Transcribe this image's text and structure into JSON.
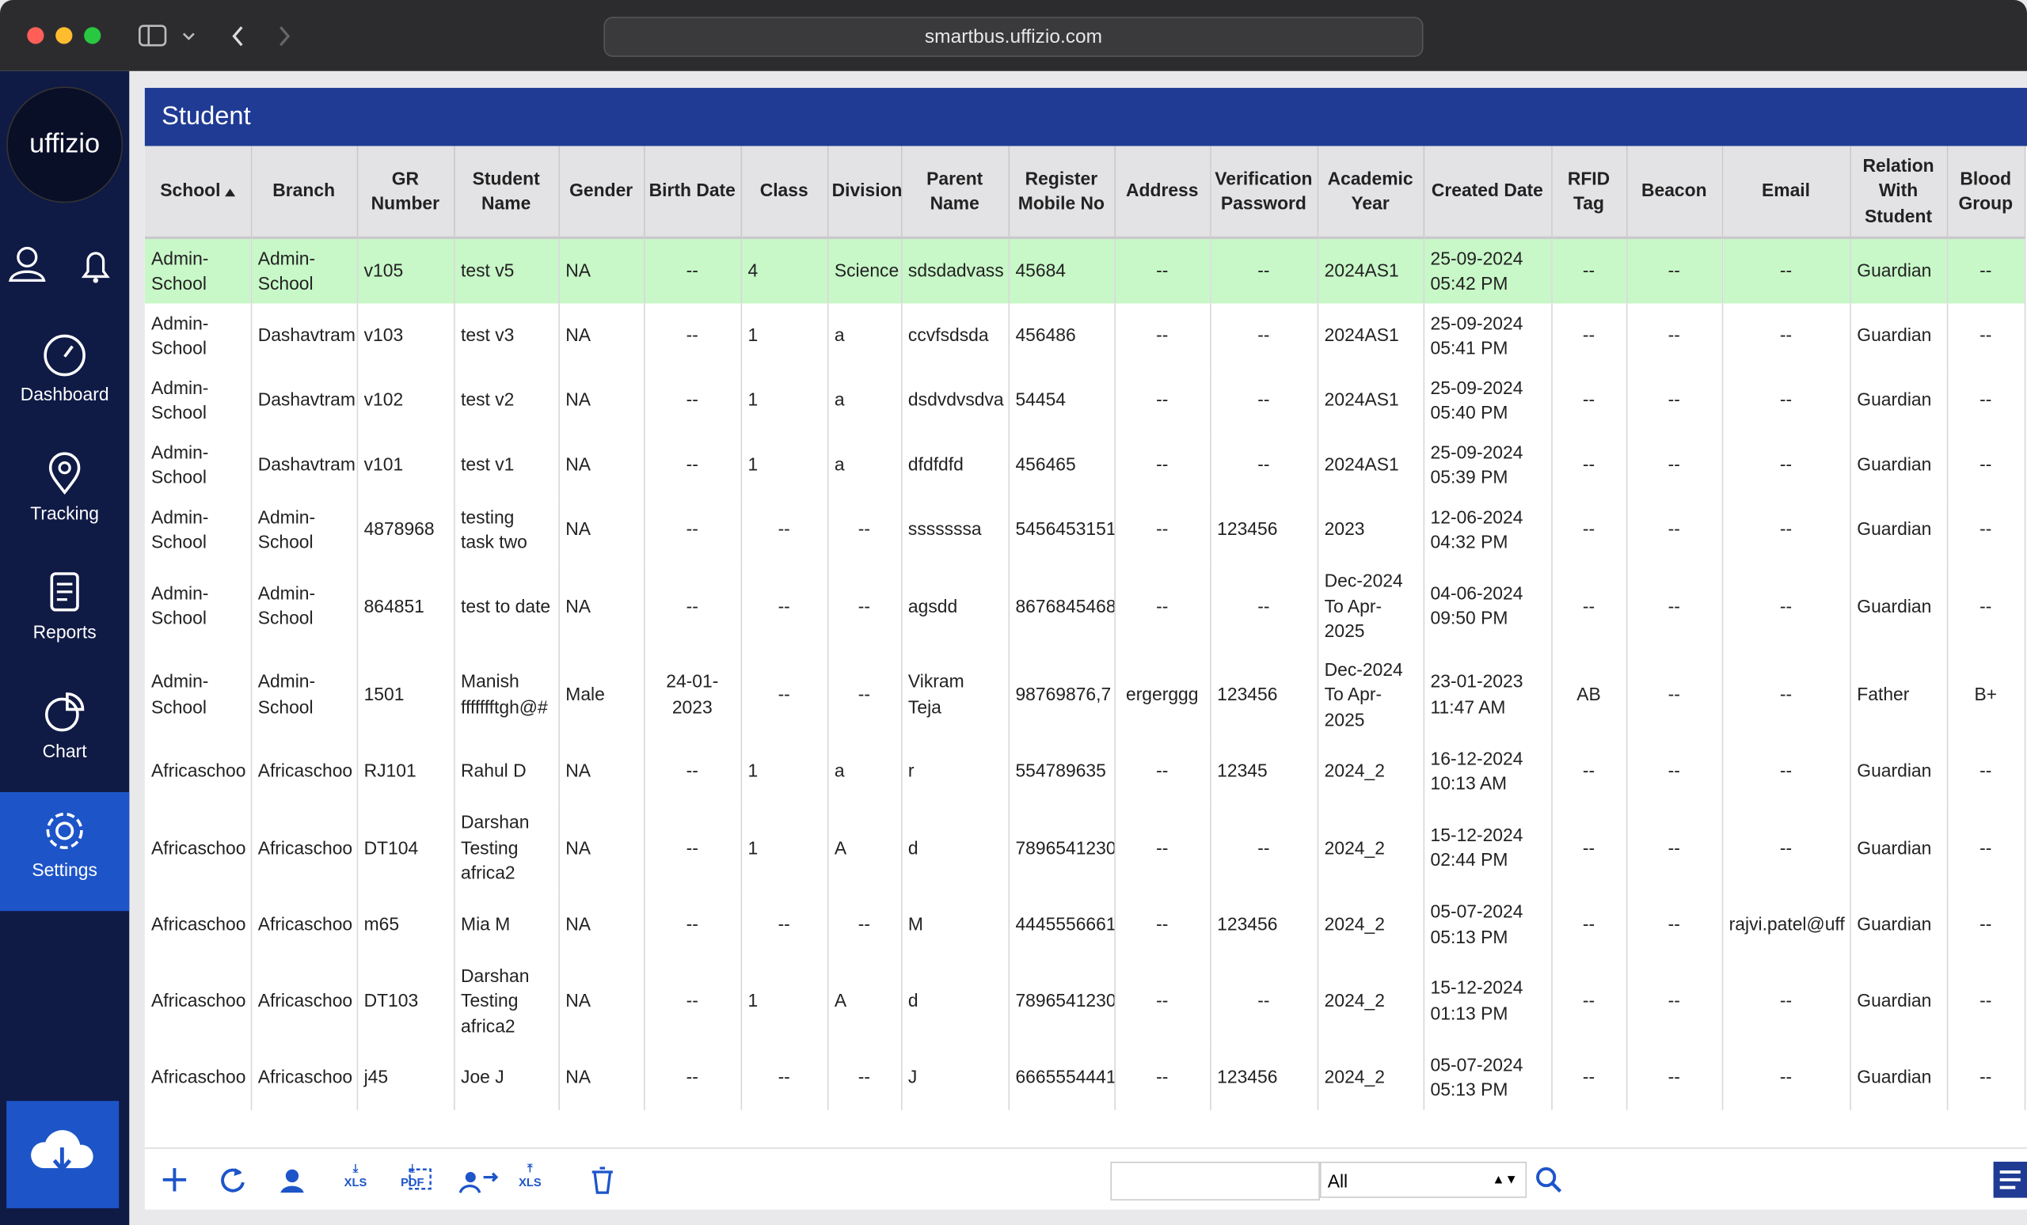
{
  "browser": {
    "url": "smartbus.uffizio.com"
  },
  "sidebar": {
    "logo": "uffizio",
    "items": [
      "Dashboard",
      "Tracking",
      "Reports",
      "Chart",
      "Settings"
    ]
  },
  "page": {
    "title": "Student"
  },
  "table": {
    "columns": [
      "School",
      "Branch",
      "GR Number",
      "Student Name",
      "Gender",
      "Birth Date",
      "Class",
      "Division",
      "Parent Name",
      "Register Mobile No",
      "Address",
      "Verification Password",
      "Academic Year",
      "Created Date",
      "RFID Tag",
      "Beacon",
      "Email",
      "Relation With Student",
      "Blood Group"
    ],
    "rows": [
      [
        "Admin-School",
        "Admin-School",
        "v105",
        "test v5",
        "NA",
        "--",
        "4",
        "Science",
        "sdsdadvass",
        "45684",
        "--",
        "--",
        "2024AS1",
        "25-09-2024 05:42 PM",
        "--",
        "--",
        "--",
        "Guardian",
        "--"
      ],
      [
        "Admin-School",
        "Dashavtram",
        "v103",
        "test v3",
        "NA",
        "--",
        "1",
        "a",
        "ccvfsdsda",
        "456486",
        "--",
        "--",
        "2024AS1",
        "25-09-2024 05:41 PM",
        "--",
        "--",
        "--",
        "Guardian",
        "--"
      ],
      [
        "Admin-School",
        "Dashavtram",
        "v102",
        "test v2",
        "NA",
        "--",
        "1",
        "a",
        "dsdvdvsdva",
        "54454",
        "--",
        "--",
        "2024AS1",
        "25-09-2024 05:40 PM",
        "--",
        "--",
        "--",
        "Guardian",
        "--"
      ],
      [
        "Admin-School",
        "Dashavtram",
        "v101",
        "test v1",
        "NA",
        "--",
        "1",
        "a",
        "dfdfdfd",
        "456465",
        "--",
        "--",
        "2024AS1",
        "25-09-2024 05:39 PM",
        "--",
        "--",
        "--",
        "Guardian",
        "--"
      ],
      [
        "Admin-School",
        "Admin-School",
        "4878968",
        "testing task two",
        "NA",
        "--",
        "--",
        "--",
        "sssssssa",
        "5456453151",
        "--",
        "123456",
        "2023",
        "12-06-2024 04:32 PM",
        "--",
        "--",
        "--",
        "Guardian",
        "--"
      ],
      [
        "Admin-School",
        "Admin-School",
        "864851",
        "test to date",
        "NA",
        "--",
        "--",
        "--",
        "agsdd",
        "8676845468",
        "--",
        "--",
        "Dec-2024 To Apr-2025",
        "04-06-2024 09:50 PM",
        "--",
        "--",
        "--",
        "Guardian",
        "--"
      ],
      [
        "Admin-School",
        "Admin-School",
        "1501",
        "Manish ffffffftgh@#",
        "Male",
        "24-01-2023",
        "--",
        "--",
        "Vikram Teja",
        "98769876,7",
        "ergerggg",
        "123456",
        "Dec-2024 To Apr-2025",
        "23-01-2023 11:47 AM",
        "AB",
        "--",
        "--",
        "Father",
        "B+"
      ],
      [
        "Africaschoo",
        "Africaschoo",
        "RJ101",
        "Rahul D",
        "NA",
        "--",
        "1",
        "a",
        "r",
        "554789635",
        "--",
        "12345",
        "2024_2",
        "16-12-2024 10:13 AM",
        "--",
        "--",
        "--",
        "Guardian",
        "--"
      ],
      [
        "Africaschoo",
        "Africaschoo",
        "DT104",
        "Darshan Testing africa2",
        "NA",
        "--",
        "1",
        "A",
        "d",
        "7896541230",
        "--",
        "--",
        "2024_2",
        "15-12-2024 02:44 PM",
        "--",
        "--",
        "--",
        "Guardian",
        "--"
      ],
      [
        "Africaschoo",
        "Africaschoo",
        "m65",
        "Mia M",
        "NA",
        "--",
        "--",
        "--",
        "M",
        "4445556661",
        "--",
        "123456",
        "2024_2",
        "05-07-2024 05:13 PM",
        "--",
        "--",
        "rajvi.patel@uff",
        "Guardian",
        "--"
      ],
      [
        "Africaschoo",
        "Africaschoo",
        "DT103",
        "Darshan Testing africa2",
        "NA",
        "--",
        "1",
        "A",
        "d",
        "7896541230",
        "--",
        "--",
        "2024_2",
        "15-12-2024 01:13 PM",
        "--",
        "--",
        "--",
        "Guardian",
        "--"
      ],
      [
        "Africaschoo",
        "Africaschoo",
        "j45",
        "Joe J",
        "NA",
        "--",
        "--",
        "--",
        "J",
        "6665554441",
        "--",
        "123456",
        "2024_2",
        "05-07-2024 05:13 PM",
        "--",
        "--",
        "--",
        "Guardian",
        "--"
      ]
    ]
  },
  "toolbar": {
    "icon_labels": [
      "XLS",
      "PDF",
      "XLS"
    ],
    "filter": "All"
  }
}
